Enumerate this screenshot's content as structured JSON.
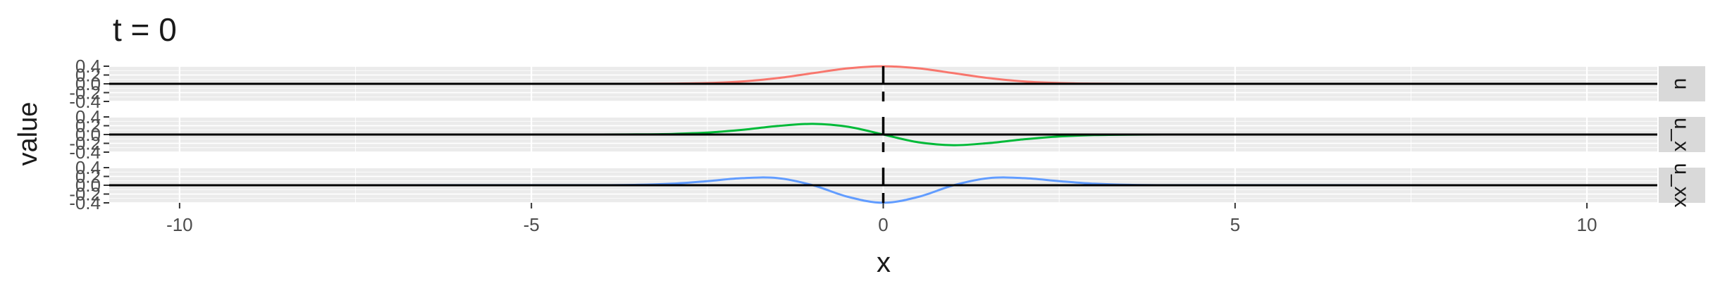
{
  "chart_data": {
    "type": "line",
    "title": "t = 0",
    "xlabel": "x",
    "ylabel": "value",
    "xlim": [
      -11,
      11
    ],
    "x_ticks": [
      -10,
      -5,
      0,
      5,
      10
    ],
    "x_tick_labels": [
      "-10",
      "-5",
      "0",
      "5",
      "10"
    ],
    "y_ticks": [
      -0.4,
      -0.2,
      0.0,
      0.2,
      0.4
    ],
    "y_tick_labels": [
      "-0.4",
      "-0.2",
      "0.0",
      "0.2",
      "0.4"
    ],
    "ylim": [
      -0.4,
      0.4
    ],
    "grid": true,
    "legend": "none",
    "vline_x": 0,
    "hline_y": 0,
    "panels": [
      {
        "strip_label": "u",
        "color": "#F8766D",
        "x": [
          -4,
          -3.5,
          -3,
          -2.5,
          -2,
          -1.5,
          -1,
          -0.5,
          0,
          0.5,
          1,
          1.5,
          2,
          2.5,
          3,
          3.5,
          4
        ],
        "y": [
          0.0001,
          0.0008,
          0.0044,
          0.0176,
          0.054,
          0.1298,
          0.242,
          0.3521,
          0.3989,
          0.3521,
          0.242,
          0.1298,
          0.054,
          0.0176,
          0.0044,
          0.0008,
          0.0001
        ]
      },
      {
        "strip_label": "u_x",
        "color": "#00BA38",
        "x": [
          -4,
          -3.5,
          -3,
          -2.5,
          -2,
          -1.5,
          -1,
          -0.5,
          0,
          0.5,
          1,
          1.5,
          2,
          2.5,
          3,
          3.5,
          4
        ],
        "y": [
          0.0005,
          0.003,
          0.0133,
          0.0438,
          0.108,
          0.1943,
          0.242,
          0.176,
          0.0,
          -0.176,
          -0.242,
          -0.1943,
          -0.108,
          -0.0438,
          -0.0133,
          -0.003,
          -0.0005
        ]
      },
      {
        "strip_label": "u_xx",
        "color": "#619CFF",
        "x": [
          -4,
          -3.5,
          -3,
          -2.5,
          -2,
          -1.5,
          -1,
          -0.5,
          0,
          0.5,
          1,
          1.5,
          2,
          2.5,
          3,
          3.5,
          4
        ],
        "y": [
          0.002,
          0.0092,
          0.0355,
          0.0924,
          0.162,
          0.1623,
          0.0,
          -0.2641,
          -0.3989,
          -0.2641,
          0.0,
          0.1623,
          0.162,
          0.0924,
          0.0355,
          0.0092,
          0.002
        ]
      }
    ]
  }
}
